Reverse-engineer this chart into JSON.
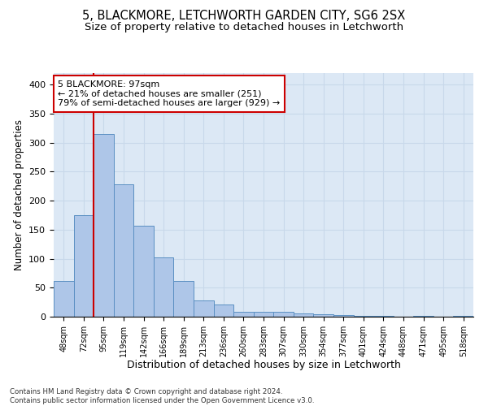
{
  "title1": "5, BLACKMORE, LETCHWORTH GARDEN CITY, SG6 2SX",
  "title2": "Size of property relative to detached houses in Letchworth",
  "xlabel": "Distribution of detached houses by size in Letchworth",
  "ylabel": "Number of detached properties",
  "footnote": "Contains HM Land Registry data © Crown copyright and database right 2024.\nContains public sector information licensed under the Open Government Licence v3.0.",
  "bins": [
    "48sqm",
    "72sqm",
    "95sqm",
    "119sqm",
    "142sqm",
    "166sqm",
    "189sqm",
    "213sqm",
    "236sqm",
    "260sqm",
    "283sqm",
    "307sqm",
    "330sqm",
    "354sqm",
    "377sqm",
    "401sqm",
    "424sqm",
    "448sqm",
    "471sqm",
    "495sqm",
    "518sqm"
  ],
  "values": [
    62,
    175,
    315,
    228,
    157,
    102,
    62,
    28,
    21,
    9,
    9,
    8,
    6,
    4,
    3,
    1,
    1,
    0,
    1,
    0,
    2
  ],
  "bar_color": "#aec6e8",
  "bar_edge_color": "#5a8fc2",
  "vline_x_index": 2,
  "vline_color": "#cc0000",
  "annotation_text": "5 BLACKMORE: 97sqm\n← 21% of detached houses are smaller (251)\n79% of semi-detached houses are larger (929) →",
  "annotation_box_color": "#ffffff",
  "annotation_box_edge": "#cc0000",
  "ylim": [
    0,
    420
  ],
  "yticks": [
    0,
    50,
    100,
    150,
    200,
    250,
    300,
    350,
    400
  ],
  "grid_color": "#c8d8ea",
  "bg_color": "#dce8f5",
  "title1_fontsize": 10.5,
  "title2_fontsize": 9.5,
  "xlabel_fontsize": 9,
  "ylabel_fontsize": 8.5
}
